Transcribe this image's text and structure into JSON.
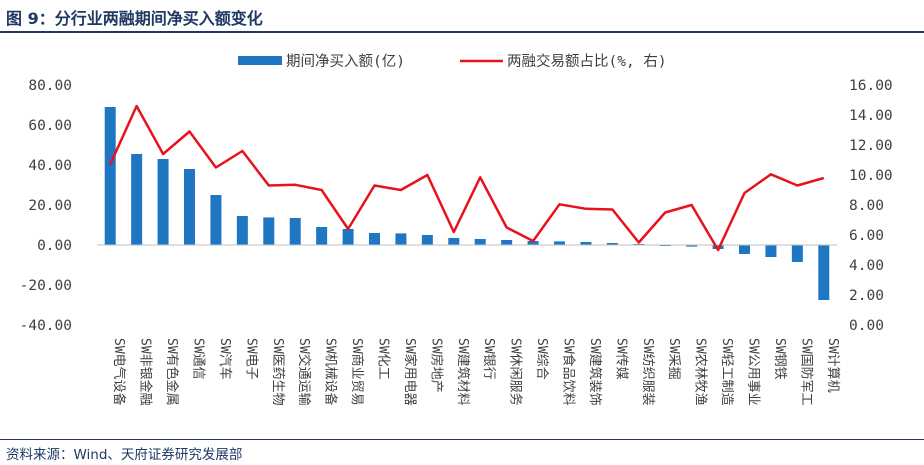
{
  "figure": {
    "title": "图 9：分行业两融期间净买入额变化",
    "source": "资料来源：Wind、天府证券研究发展部"
  },
  "colors": {
    "bar": "#1f77c4",
    "line": "#e8121c",
    "text": "#404040",
    "heading": "#1f3864"
  },
  "chart_data": {
    "type": "bar+line",
    "categories": [
      "SW电气设备",
      "SW非银金融",
      "SW有色金属",
      "SW通信",
      "SW汽车",
      "SW电子",
      "SW医药生物",
      "SW交通运输",
      "SW机械设备",
      "SW商业贸易",
      "SW化工",
      "SW家用电器",
      "SW房地产",
      "SW建筑材料",
      "SW银行",
      "SW休闲服务",
      "SW综合",
      "SW食品饮料",
      "SW建筑装饰",
      "SW传媒",
      "SW纺织服装",
      "SW采掘",
      "SW农林牧渔",
      "SW轻工制造",
      "SW公用事业",
      "SW钢铁",
      "SW国防军工",
      "SW计算机"
    ],
    "series": [
      {
        "name": "期间净买入额(亿)",
        "type": "bar",
        "axis": "left",
        "values": [
          69,
          45.5,
          43,
          38,
          25,
          14.5,
          13.8,
          13.5,
          9,
          8,
          6,
          5.8,
          5,
          3.5,
          3,
          2.5,
          2,
          1.8,
          1.5,
          1,
          0.5,
          -0.5,
          -0.8,
          -2,
          -4.5,
          -6,
          -8.5,
          -27.5
        ]
      },
      {
        "name": "两融交易额占比(%, 右)",
        "type": "line",
        "axis": "right",
        "values": [
          10.7,
          14.6,
          11.4,
          12.9,
          10.5,
          11.6,
          9.3,
          9.35,
          9.0,
          6.4,
          9.3,
          9.0,
          10.0,
          6.2,
          9.85,
          6.5,
          5.6,
          8.05,
          7.75,
          7.7,
          5.5,
          7.5,
          8.0,
          5.0,
          8.8,
          10.05,
          9.3,
          9.8
        ]
      }
    ],
    "y_left": {
      "min": -40,
      "max": 80,
      "ticks": [
        "80.00",
        "60.00",
        "40.00",
        "20.00",
        "0.00",
        "-20.00",
        "-40.00"
      ]
    },
    "y_right": {
      "min": 0,
      "max": 16,
      "ticks": [
        "16.00",
        "14.00",
        "12.00",
        "10.00",
        "8.00",
        "6.00",
        "4.00",
        "2.00",
        "0.00"
      ]
    },
    "legend_placement": "top-center",
    "grid": false
  }
}
